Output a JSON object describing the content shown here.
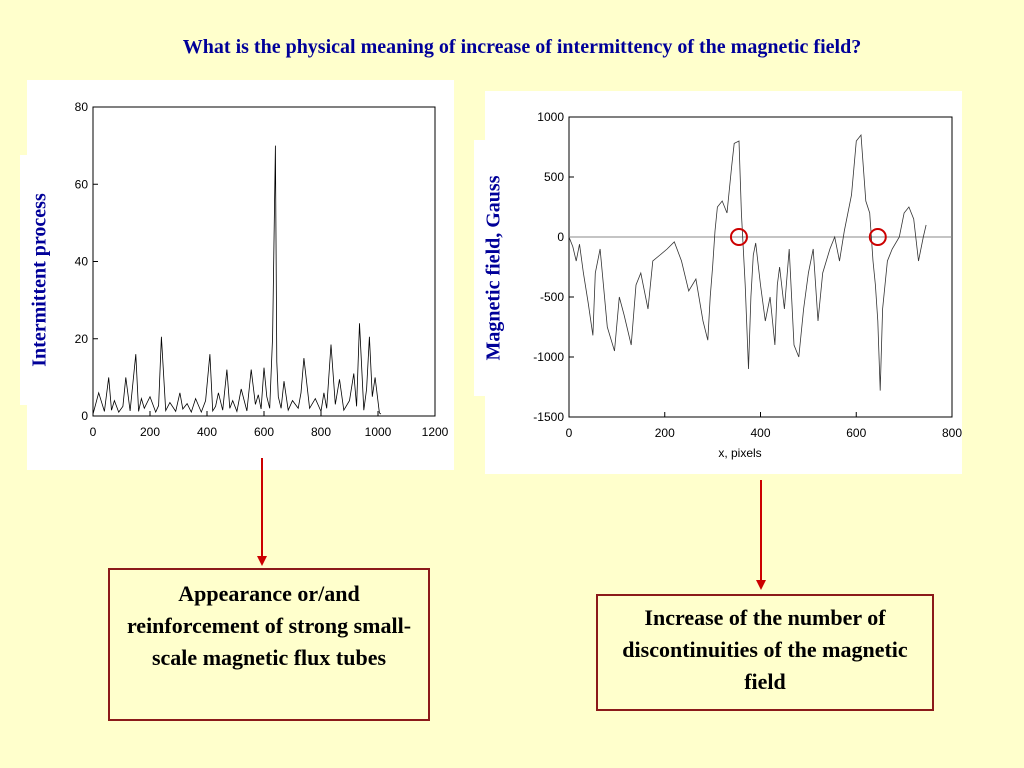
{
  "title": "What is the physical meaning of increase of intermittency of the magnetic field?",
  "left_plot": {
    "ylabel": "Intermittent process"
  },
  "right_plot": {
    "ylabel": "Magnetic field, Gauss",
    "xlabel": "x, pixels"
  },
  "boxes": {
    "left": "Appearance or/and reinforcement of strong small-scale magnetic flux tubes",
    "right": "Increase of the number of  discontinuities of the magnetic field"
  },
  "colors": {
    "text": "#000099",
    "box_border": "#8b1a1a",
    "arrow": "#cc0000",
    "marker": "#cc0000",
    "background": "#ffffcc"
  },
  "chart_data": [
    {
      "type": "line",
      "title": "",
      "xlabel": "",
      "ylabel": "Intermittent process",
      "xlim": [
        0,
        1200
      ],
      "ylim": [
        0,
        80
      ],
      "xticks": [
        0,
        200,
        400,
        600,
        800,
        1000,
        1200
      ],
      "yticks": [
        0,
        20,
        40,
        60,
        80
      ],
      "series": [
        {
          "x": [
            0,
            20,
            40,
            55,
            65,
            75,
            90,
            105,
            115,
            130,
            150,
            160,
            170,
            180,
            200,
            220,
            230,
            240,
            255,
            270,
            290,
            305,
            315,
            330,
            345,
            360,
            380,
            395,
            410,
            420,
            430,
            440,
            455,
            470,
            480,
            490,
            505,
            520,
            540,
            555,
            570,
            580,
            590,
            600,
            610,
            620,
            630,
            640,
            645,
            650,
            660,
            670,
            685,
            700,
            720,
            730,
            740,
            760,
            780,
            800,
            810,
            820,
            835,
            850,
            865,
            880,
            900,
            915,
            925,
            935,
            950,
            960,
            970,
            980,
            990,
            1005,
            1010
          ],
          "y": [
            0.5,
            6,
            1.2,
            10,
            1.5,
            4,
            1,
            2.5,
            10,
            1.3,
            16,
            1.2,
            4.5,
            2,
            5,
            1,
            2.7,
            20.5,
            1.4,
            3.5,
            1.2,
            6,
            1.8,
            3.2,
            1,
            4.5,
            1,
            4,
            16,
            1.3,
            2.5,
            6,
            1.5,
            12,
            2,
            4,
            1.2,
            7,
            1.3,
            12,
            3,
            5.5,
            1.8,
            12.5,
            5,
            2,
            20.5,
            70,
            14,
            5,
            2,
            9,
            1.5,
            4,
            2,
            6,
            15,
            2,
            4.5,
            1.2,
            6,
            2,
            18.5,
            3,
            9.5,
            1.5,
            4,
            11,
            2.5,
            24,
            1.5,
            7,
            20.5,
            5,
            10,
            0.8,
            0.5
          ]
        }
      ]
    },
    {
      "type": "line",
      "title": "",
      "xlabel": "x, pixels",
      "ylabel": "Magnetic field, Gauss",
      "xlim": [
        0,
        800
      ],
      "ylim": [
        -1500,
        1000
      ],
      "xticks": [
        0,
        200,
        400,
        600,
        800
      ],
      "yticks": [
        -1500,
        -1000,
        -500,
        0,
        500,
        1000
      ],
      "series": [
        {
          "x": [
            0,
            8,
            15,
            22,
            30,
            40,
            50,
            55,
            65,
            80,
            95,
            105,
            115,
            130,
            140,
            150,
            165,
            175,
            190,
            205,
            220,
            235,
            250,
            265,
            280,
            290,
            295,
            300,
            305,
            310,
            320,
            330,
            340,
            345,
            355,
            360,
            368,
            375,
            380,
            385,
            390,
            400,
            410,
            420,
            430,
            435,
            440,
            450,
            460,
            470,
            480,
            490,
            500,
            510,
            520,
            530,
            545,
            555,
            565,
            575,
            590,
            600,
            610,
            620,
            628,
            635,
            640,
            645,
            650,
            655,
            665,
            675,
            690,
            700,
            710,
            720,
            730,
            740,
            746
          ],
          "y": [
            0,
            -80,
            -200,
            -60,
            -300,
            -550,
            -820,
            -300,
            -100,
            -750,
            -950,
            -500,
            -650,
            -900,
            -400,
            -300,
            -600,
            -200,
            -150,
            -100,
            -40,
            -200,
            -450,
            -350,
            -700,
            -860,
            -500,
            -250,
            50,
            250,
            300,
            200,
            600,
            780,
            800,
            200,
            -400,
            -1100,
            -500,
            -150,
            -50,
            -400,
            -700,
            -500,
            -900,
            -400,
            -250,
            -600,
            -100,
            -900,
            -1000,
            -600,
            -300,
            -100,
            -700,
            -300,
            -100,
            0,
            -200,
            50,
            350,
            800,
            850,
            300,
            200,
            -200,
            -400,
            -700,
            -1280,
            -600,
            -200,
            -100,
            0,
            200,
            250,
            150,
            -200,
            0,
            100
          ]
        }
      ],
      "markers": [
        {
          "x": 355,
          "y": 0
        },
        {
          "x": 645,
          "y": 0
        }
      ]
    }
  ]
}
